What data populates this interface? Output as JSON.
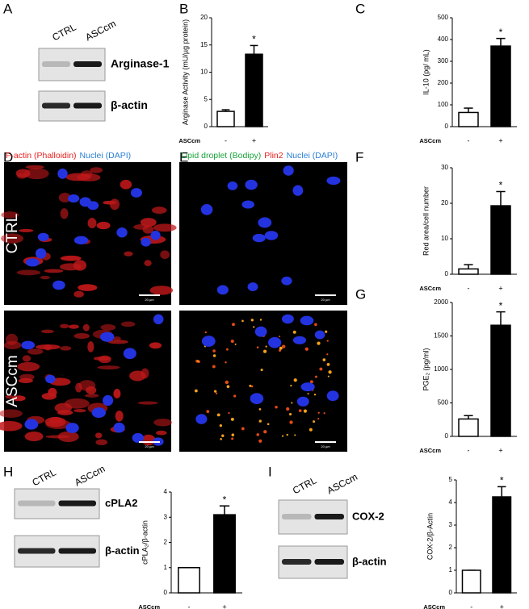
{
  "panel_letters": [
    "A",
    "B",
    "C",
    "D",
    "E",
    "F",
    "G",
    "H",
    "I"
  ],
  "blots": [
    {
      "lanes": [
        "CTRL",
        "ASCcm"
      ],
      "bands": [
        "Arginase-1",
        "β-actin"
      ]
    },
    {
      "lanes": [
        "CTRL",
        "ASCcm"
      ],
      "bands": [
        "cPLA2",
        "β-actin"
      ]
    },
    {
      "lanes": [
        "CTRL",
        "ASCcm"
      ],
      "bands": [
        "COX-2",
        "β-actin"
      ]
    }
  ],
  "micrographs": [
    {
      "stain_labels": [
        {
          "text": "F-actin (Phalloidin)",
          "color": "#e8201e"
        },
        {
          "text": "Nuclei (DAPI)",
          "color": "#2a7fd6"
        }
      ],
      "rows": [
        "CTRL",
        "ASCcm"
      ],
      "scale_bar": "20 µm"
    },
    {
      "stain_labels": [
        {
          "text": "Lipid droplet (Bodipy)",
          "color": "#1aa33a"
        },
        {
          "text": "Plin2",
          "color": "#e8201e"
        },
        {
          "text": "Nuclei (DAPI)",
          "color": "#2a7fd6"
        }
      ],
      "rows": [
        "CTRL",
        "ASCcm"
      ],
      "scale_bar": "20 µm"
    }
  ],
  "chart_data": [
    {
      "type": "bar",
      "ylabel": "Arginase Activity (mU/µg protein)",
      "xlabel": "ASCcm",
      "categories": [
        "-",
        "+"
      ],
      "values": [
        2.8,
        13.3
      ],
      "errors": [
        0.3,
        1.6
      ],
      "colors": [
        "#ffffff",
        "#000000"
      ],
      "ylim": [
        0,
        20
      ],
      "yticks": [
        0,
        5,
        10,
        15,
        20
      ],
      "annotation": "*"
    },
    {
      "type": "bar",
      "ylabel": "IL-10 (pg/ mL)",
      "xlabel": "ASCcm",
      "categories": [
        "-",
        "+"
      ],
      "values": [
        65,
        370
      ],
      "errors": [
        20,
        35
      ],
      "colors": [
        "#ffffff",
        "#000000"
      ],
      "ylim": [
        0,
        500
      ],
      "yticks": [
        0,
        100,
        200,
        300,
        400,
        500
      ],
      "annotation": "*"
    },
    {
      "type": "bar",
      "ylabel": "Red area/cell number",
      "xlabel": "ASCcm",
      "categories": [
        "-",
        "+"
      ],
      "values": [
        1.5,
        19.3
      ],
      "errors": [
        1.2,
        4
      ],
      "colors": [
        "#ffffff",
        "#000000"
      ],
      "ylim": [
        0,
        30
      ],
      "yticks": [
        0,
        10,
        20,
        30
      ],
      "annotation": "*"
    },
    {
      "type": "bar",
      "ylabel": "PGE₂ (pg/ml)",
      "xlabel": "ASCcm",
      "categories": [
        "-",
        "+"
      ],
      "values": [
        260,
        1660
      ],
      "errors": [
        50,
        200
      ],
      "colors": [
        "#ffffff",
        "#000000"
      ],
      "ylim": [
        0,
        2000
      ],
      "yticks": [
        0,
        500,
        1000,
        1500,
        2000
      ],
      "annotation": "*"
    },
    {
      "type": "bar",
      "ylabel": "cPLA₂/β-actin",
      "xlabel": "ASCcm",
      "categories": [
        "-",
        "+"
      ],
      "values": [
        1,
        3.1
      ],
      "errors": [
        0,
        0.35
      ],
      "colors": [
        "#ffffff",
        "#000000"
      ],
      "ylim": [
        0,
        4
      ],
      "yticks": [
        0,
        1,
        2,
        3,
        4
      ],
      "annotation": "*"
    },
    {
      "type": "bar",
      "ylabel": "COX-2/β-Actin",
      "xlabel": "ASCcm",
      "categories": [
        "-",
        "+"
      ],
      "values": [
        1,
        4.25
      ],
      "errors": [
        0,
        0.45
      ],
      "colors": [
        "#ffffff",
        "#000000"
      ],
      "ylim": [
        0,
        5
      ],
      "yticks": [
        0,
        1,
        2,
        3,
        4,
        5
      ],
      "annotation": "*"
    }
  ]
}
